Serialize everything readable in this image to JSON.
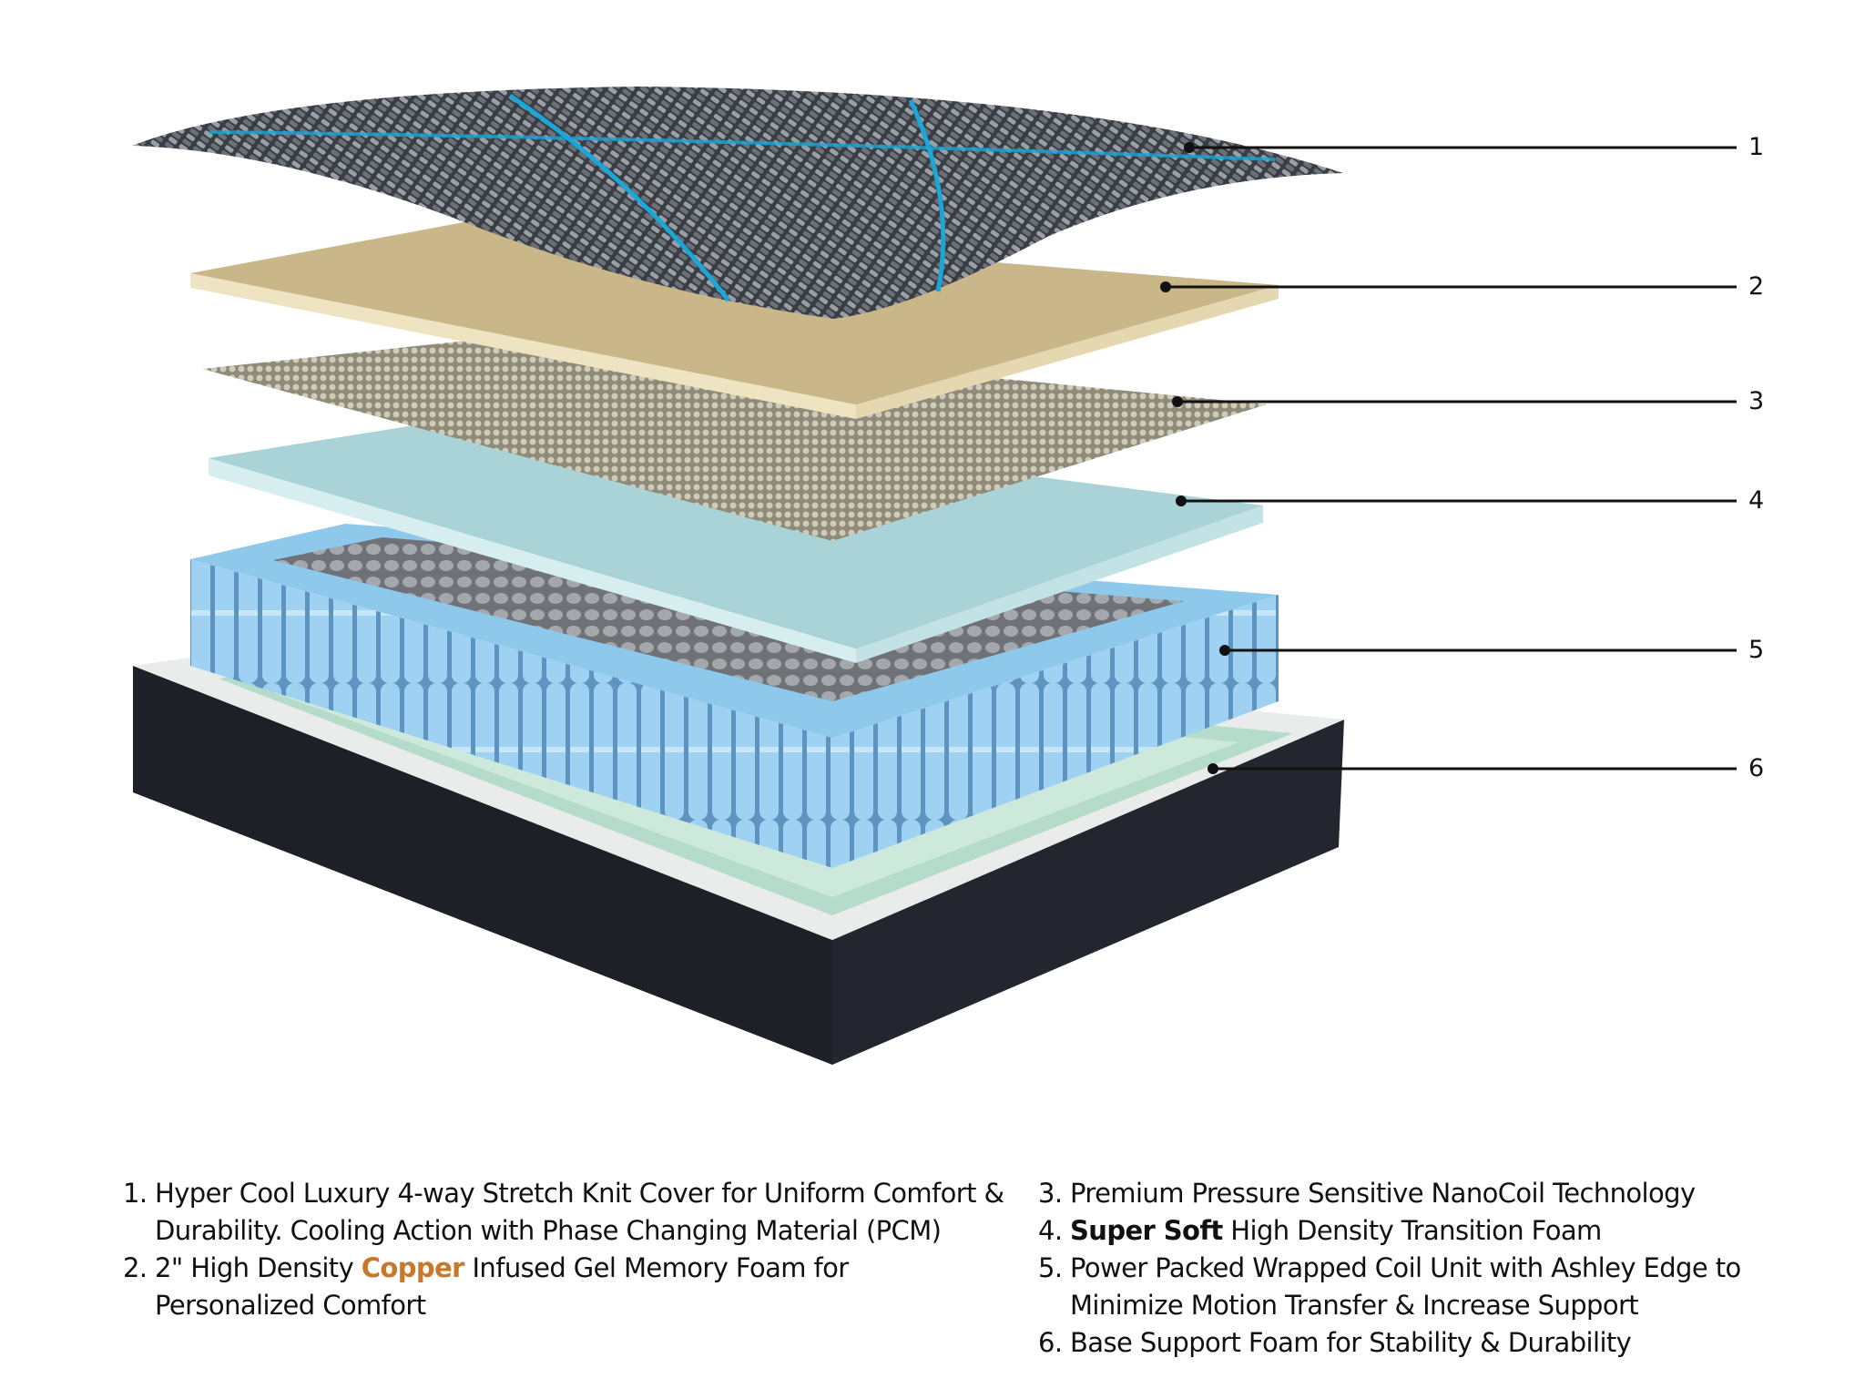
{
  "colors": {
    "copper_accent": "#c8782a",
    "cover_stripe": "#1aa6d6",
    "coil_blue": "#8ec9ec",
    "foam_tan": "#c9b78a",
    "transition_foam": "#a9d3d6",
    "base_dark": "#1d2027"
  },
  "callouts": [
    "1",
    "2",
    "3",
    "4",
    "5",
    "6"
  ],
  "legend": [
    {
      "num": "1.",
      "lines": [
        [
          "Hyper Cool Luxury 4-way Stretch Knit Cover for Uniform Comfort &"
        ],
        [
          "Durability. Cooling Action with Phase Changing Material (PCM)"
        ]
      ]
    },
    {
      "num": "2.",
      "pre": "2\" High Density ",
      "accent": "Copper",
      "post": " Infused Gel Memory Foam for",
      "line2": "Personalized Comfort"
    },
    {
      "num": "3.",
      "text": "Premium Pressure Sensitive NanoCoil Technology"
    },
    {
      "num": "4.",
      "bold": "Super Soft",
      "post": " High Density Transition Foam"
    },
    {
      "num": "5.",
      "text": "Power Packed Wrapped Coil Unit with Ashley Edge to",
      "line2": "Minimize Motion Transfer & Increase Support"
    },
    {
      "num": "6.",
      "text": "Base Support Foam for Stability & Durability"
    }
  ]
}
